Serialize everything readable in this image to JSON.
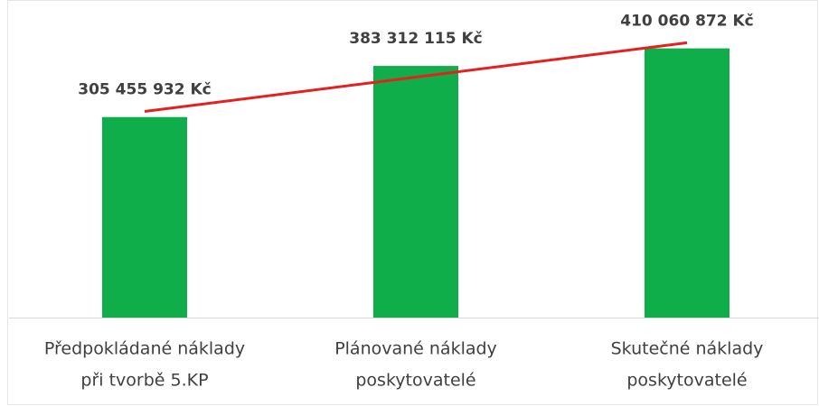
{
  "chart_data": {
    "type": "bar",
    "categories": [
      [
        "Předpokládané náklady",
        "při tvorbě 5.KP"
      ],
      [
        "Plánované náklady",
        "poskytovatelé"
      ],
      [
        "Skutečné náklady",
        "poskytovatelé"
      ]
    ],
    "values": [
      305455932,
      383312115,
      410060872
    ],
    "value_labels": [
      "305 455 932 Kč",
      "383 312 115 Kč",
      "410 060 872 Kč"
    ],
    "color": "#0fae4b",
    "trendline": {
      "type": "linear",
      "color": "#e3211f"
    },
    "ylim": [
      0,
      470000000
    ],
    "grid": false
  }
}
